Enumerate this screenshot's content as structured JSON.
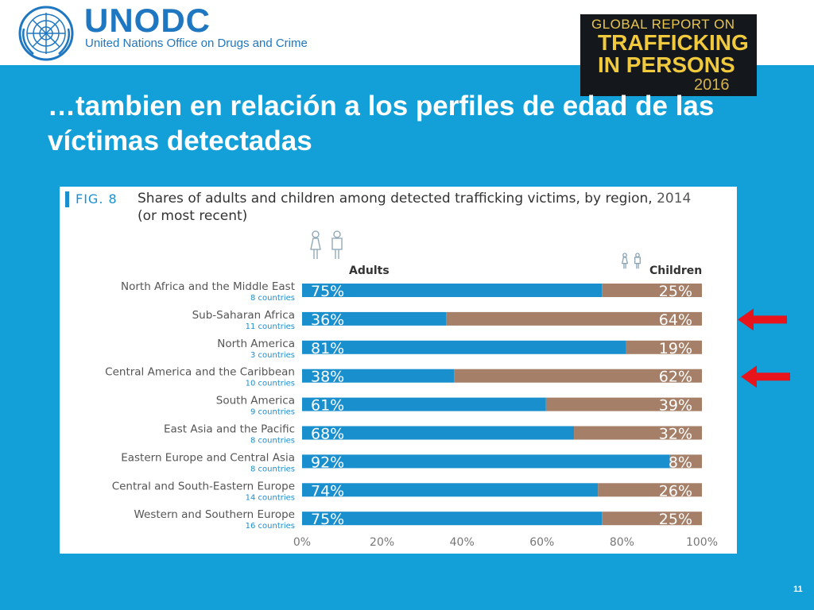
{
  "header": {
    "brand": "UNODC",
    "brand_subtitle": "United Nations Office on Drugs and Crime",
    "logo_icon": "un-emblem-icon",
    "report_cover": {
      "line1": "GLOBAL REPORT ON",
      "line2": "TRAFFICKING",
      "line3": "IN PERSONS",
      "year": "2016"
    }
  },
  "slide": {
    "title": "…tambien en relación a los perfiles de edad de las víctimas detectadas",
    "page_number": "11"
  },
  "figure": {
    "label": "FIG. 8",
    "title": "Shares of adults and children among detected trafficking victims, by region,",
    "title_year": "2014",
    "title_note": "(or most recent)"
  },
  "colors": {
    "background": "#139fd8",
    "adults": "#1a8fce",
    "children": "#a57f68",
    "arrow": "#e8141c",
    "count_text": "#1a8fce"
  },
  "chart_data": {
    "type": "bar",
    "orientation": "horizontal",
    "stacked": true,
    "legend": [
      "Adults",
      "Children"
    ],
    "legend_icons": [
      "adults-icon",
      "children-icon"
    ],
    "categories": [
      "North Africa and the Middle East",
      "Sub-Saharan Africa",
      "North America",
      "Central America and the Caribbean",
      "South America",
      "East Asia and the Pacific",
      "Eastern Europe and Central Asia",
      "Central and South-Eastern Europe",
      "Western and Southern Europe"
    ],
    "country_counts": [
      "8 countries",
      "11 countries",
      "3 countries",
      "10 countries",
      "9 countries",
      "8 countries",
      "8 countries",
      "14 countries",
      "16 countries"
    ],
    "series": [
      {
        "name": "Adults",
        "values": [
          75,
          36,
          81,
          38,
          61,
          68,
          92,
          74,
          75
        ]
      },
      {
        "name": "Children",
        "values": [
          25,
          64,
          19,
          62,
          39,
          32,
          8,
          26,
          25
        ]
      }
    ],
    "x_ticks": [
      "0%",
      "20%",
      "40%",
      "60%",
      "80%",
      "100%"
    ],
    "xlim": [
      0,
      100
    ],
    "highlighted_categories": [
      "Sub-Saharan Africa",
      "Central America and the Caribbean"
    ]
  }
}
